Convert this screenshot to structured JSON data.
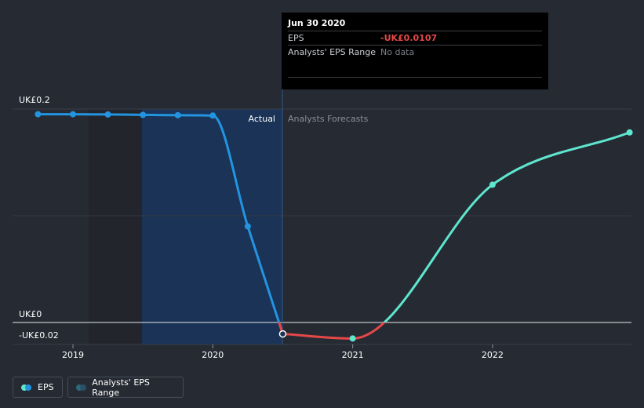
{
  "tooltip": {
    "date": "Jun 30 2020",
    "rows": [
      {
        "label": "EPS",
        "value": "-UK£0.0107"
      },
      {
        "label": "Analysts' EPS Range",
        "value": "No data"
      }
    ]
  },
  "sections": {
    "actual": "Actual",
    "forecast": "Analysts Forecasts"
  },
  "legend": {
    "eps_label": "EPS",
    "range_label": "Analysts' EPS Range"
  },
  "colors": {
    "background": "#262a33",
    "actual_line": "#2394df",
    "negative_line": "#e64848",
    "forecast_line": "#5ee6cf",
    "highlight_band": "#1a3357",
    "range_dot": "#2d6a78"
  },
  "chart_data": {
    "type": "line",
    "y_ticks": [
      {
        "value": 0.2,
        "label": "UK£0.2"
      },
      {
        "value": 0,
        "label": "UK£0"
      },
      {
        "value": -0.02,
        "label": "-UK£0.02"
      }
    ],
    "x_ticks": [
      {
        "value": 2019,
        "label": "2019"
      },
      {
        "value": 2020,
        "label": "2020"
      },
      {
        "value": 2021,
        "label": "2021"
      },
      {
        "value": 2022,
        "label": "2022"
      }
    ],
    "xlim": [
      2018.58,
      2022.98
    ],
    "ylim": [
      -0.02,
      0.2
    ],
    "series": [
      {
        "name": "EPS",
        "points": [
          {
            "x": 2018.75,
            "y": 0.195
          },
          {
            "x": 2019.0,
            "y": 0.195
          },
          {
            "x": 2019.25,
            "y": 0.1948
          },
          {
            "x": 2019.5,
            "y": 0.1944
          },
          {
            "x": 2019.75,
            "y": 0.1941
          },
          {
            "x": 2020.0,
            "y": 0.1938
          },
          {
            "x": 2020.25,
            "y": 0.09
          },
          {
            "x": 2020.5,
            "y": -0.0107
          }
        ]
      },
      {
        "name": "Analysts Forecasts",
        "points": [
          {
            "x": 2020.5,
            "y": -0.0107
          },
          {
            "x": 2021.0,
            "y": -0.015
          },
          {
            "x": 2022.0,
            "y": 0.129
          },
          {
            "x": 2022.98,
            "y": 0.178
          }
        ]
      }
    ],
    "highlight_x": 2020.5
  }
}
